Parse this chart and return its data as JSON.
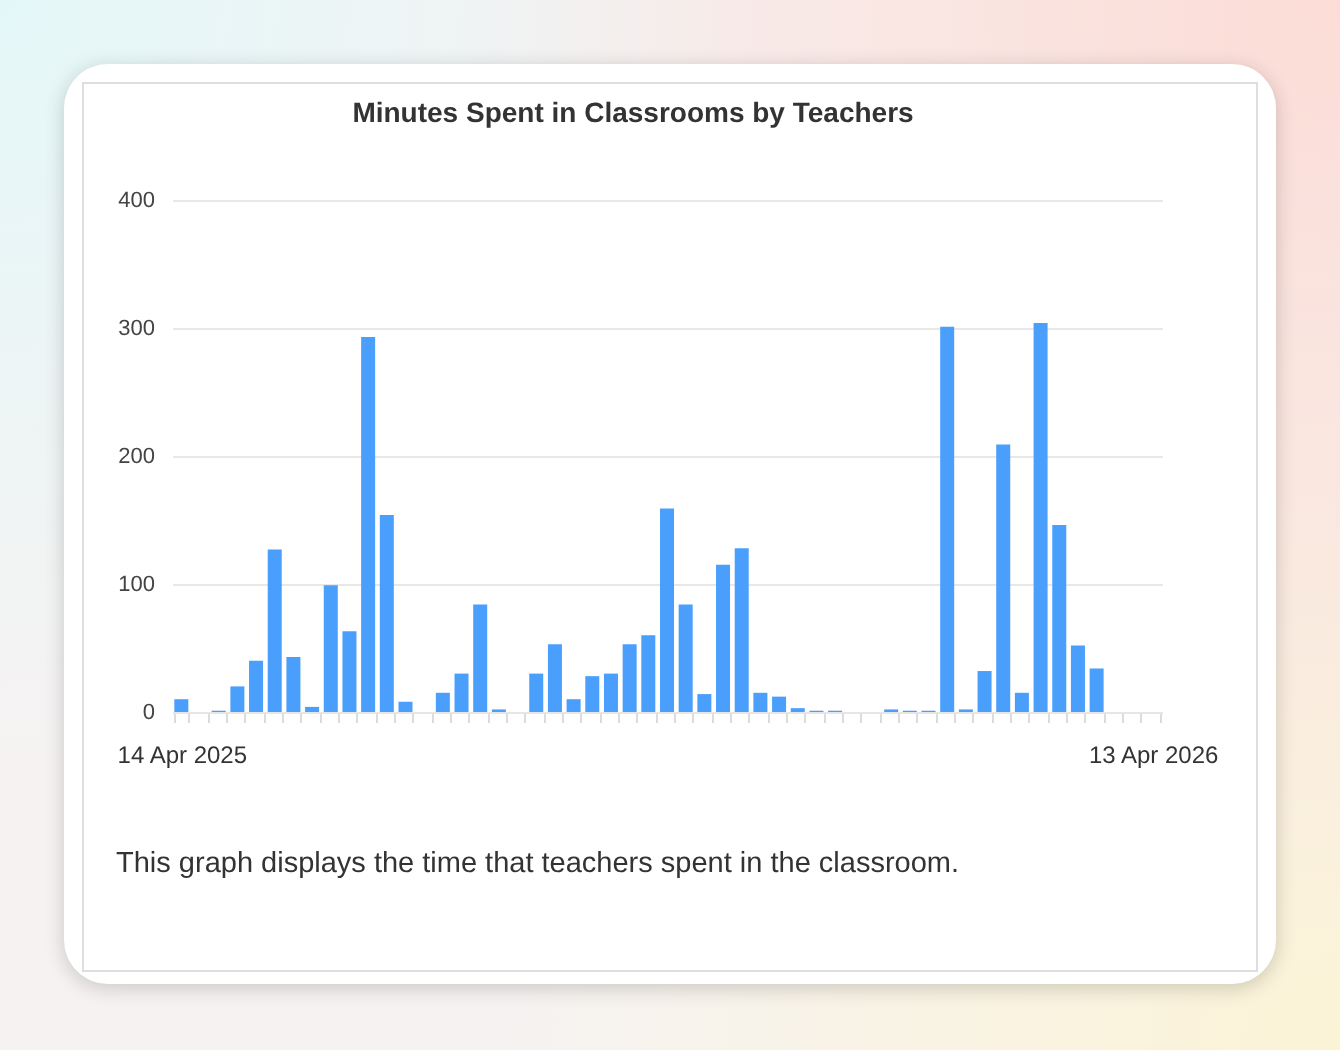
{
  "chart_data": {
    "type": "bar",
    "title": "Minutes Spent in Classrooms by Teachers",
    "categories": [
      "14 Apr 2025",
      null,
      null,
      null,
      null,
      null,
      null,
      null,
      null,
      null,
      null,
      null,
      null,
      null,
      null,
      null,
      null,
      null,
      null,
      null,
      null,
      null,
      null,
      null,
      null,
      null,
      null,
      null,
      null,
      null,
      null,
      null,
      null,
      null,
      null,
      null,
      null,
      null,
      null,
      null,
      null,
      null,
      null,
      null,
      null,
      null,
      null,
      null,
      null,
      null,
      null,
      null,
      "13 Apr 2026"
    ],
    "values": [
      10,
      null,
      1,
      20,
      40,
      127,
      43,
      4,
      99,
      63,
      293,
      154,
      8,
      null,
      15,
      30,
      84,
      2,
      null,
      30,
      53,
      10,
      28,
      30,
      53,
      60,
      159,
      84,
      14,
      115,
      128,
      15,
      12,
      3,
      1,
      1,
      null,
      null,
      2,
      1,
      1,
      301,
      2,
      32,
      209,
      15,
      304,
      146,
      52,
      34,
      null,
      null,
      null
    ],
    "color": "#4a9ffc",
    "ylim": [
      0,
      400
    ],
    "yticks": [
      0,
      100,
      200,
      300,
      400
    ],
    "grid": "y",
    "annotations": [
      "This graph displays the time that teachers spent in the classroom."
    ]
  }
}
